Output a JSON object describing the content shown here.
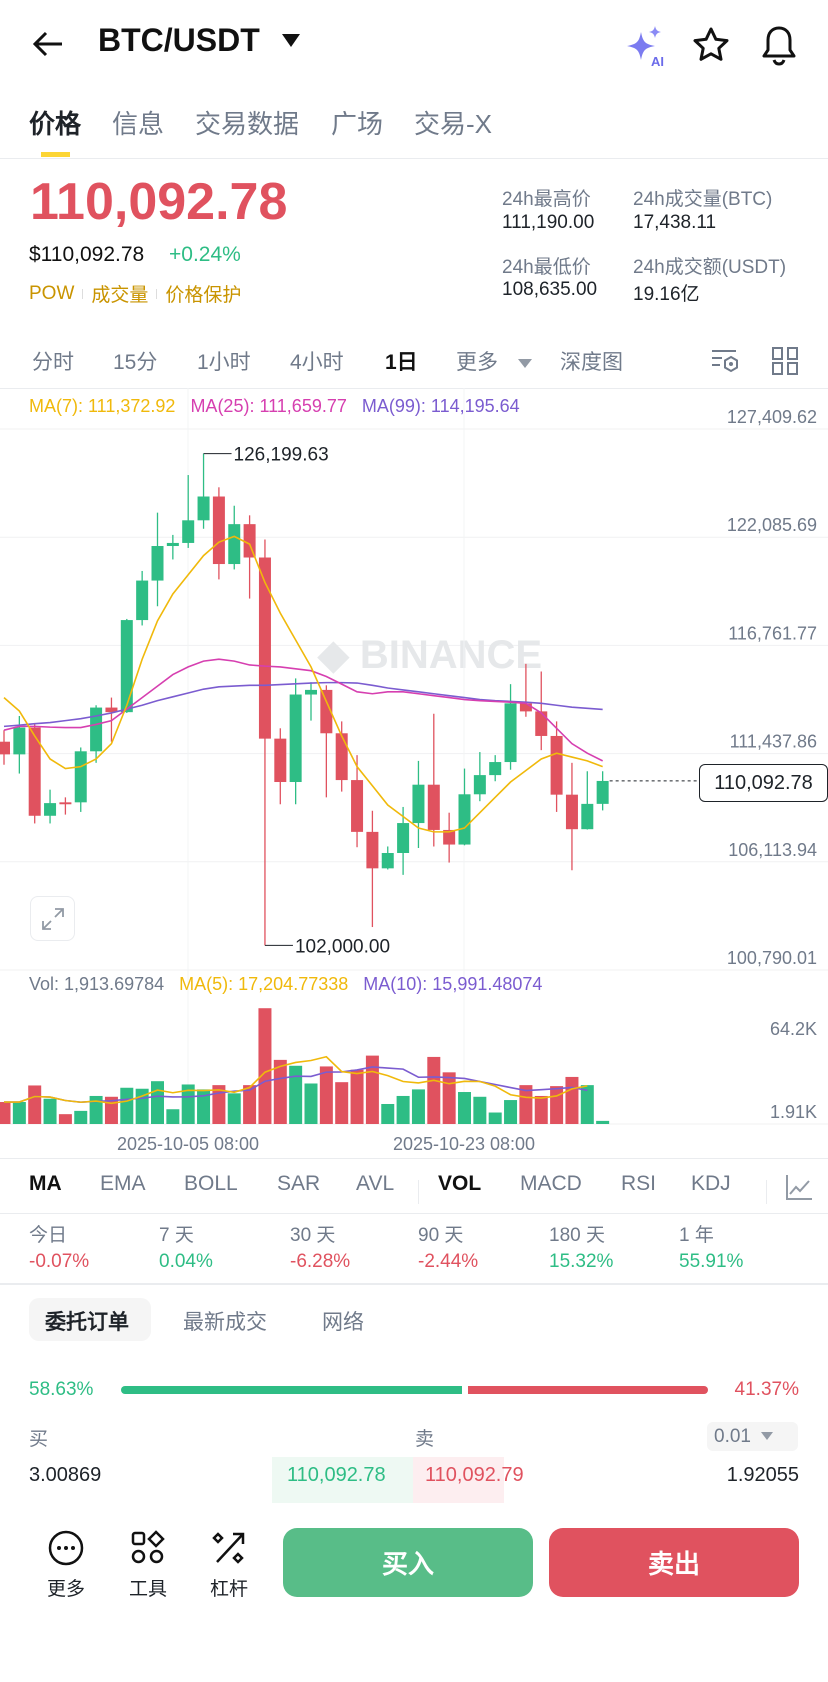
{
  "header": {
    "pair": "BTC/USDT",
    "icons": [
      "back-arrow-icon",
      "ai-sparkle-icon",
      "star-icon",
      "bell-icon"
    ]
  },
  "tabs": [
    "价格",
    "信息",
    "交易数据",
    "广场",
    "交易-X"
  ],
  "price": {
    "last": "110,092.78",
    "usd": "$110,092.78",
    "change": "+0.24%",
    "tags": [
      "POW",
      "成交量",
      "价格保护"
    ]
  },
  "stats": {
    "high_label": "24h最高价",
    "high": "111,190.00",
    "vol_btc_label": "24h成交量(BTC)",
    "vol_btc": "17,438.11",
    "low_label": "24h最低价",
    "low": "108,635.00",
    "vol_usdt_label": "24h成交额(USDT)",
    "vol_usdt": "19.16亿"
  },
  "intervals": [
    "分时",
    "15分",
    "1小时",
    "4小时",
    "1日",
    "更多",
    "深度图"
  ],
  "active_interval": "1日",
  "colors": {
    "up": "#2ebd85",
    "down": "#e0525f",
    "ma7": "#f0b90b",
    "ma25": "#d63fb0",
    "ma99": "#7b5cd0",
    "accent": "#fcd535"
  },
  "chart_data": {
    "type": "candlestick",
    "ma_labels": {
      "ma7": "MA(7): 111,372.92",
      "ma25": "MA(25): 111,659.77",
      "ma99": "MA(99): 114,195.64"
    },
    "y_ticks": [
      "127,409.62",
      "122,085.69",
      "116,761.77",
      "111,437.86",
      "106,113.94",
      "100,790.01"
    ],
    "y_tick_values": [
      127409.62,
      122085.69,
      116761.77,
      111437.86,
      106113.94,
      100790.01
    ],
    "ylim": [
      100790.01,
      127409.62
    ],
    "max_label": "126,199.63",
    "min_label": "102,000.00",
    "current_label": "110,092.78",
    "current": 110092.78,
    "x_ticks": [
      "2025-10-05 08:00",
      "2025-10-23 08:00"
    ],
    "ohlc": [
      [
        112023,
        112589,
        110890,
        111400
      ],
      [
        111400,
        113288,
        110456,
        112721
      ],
      [
        112721,
        112872,
        108001,
        108379
      ],
      [
        108379,
        109663,
        108001,
        109002
      ],
      [
        109040,
        109285,
        108436,
        108945
      ],
      [
        109040,
        111740,
        108568,
        111551
      ],
      [
        111551,
        113816,
        110984,
        113703
      ],
      [
        113703,
        114194,
        112023,
        113477
      ],
      [
        113477,
        118064,
        113439,
        118008
      ],
      [
        118008,
        120424,
        117743,
        119952
      ],
      [
        119952,
        123294,
        118688,
        121652
      ],
      [
        121652,
        122199,
        120991,
        121803
      ],
      [
        121803,
        125144,
        121557,
        122917
      ],
      [
        122917,
        126199.63,
        122501,
        124088
      ],
      [
        124088,
        124541,
        120010,
        120765
      ],
      [
        120765,
        123634,
        120500,
        122728
      ],
      [
        122728,
        123162,
        119066,
        121086
      ],
      [
        121086,
        121973,
        102000,
        112174
      ],
      [
        112174,
        112683,
        108945,
        110040
      ],
      [
        110040,
        115138,
        108945,
        114345
      ],
      [
        114345,
        114949,
        113061,
        114572
      ],
      [
        114572,
        114798,
        109285,
        112438
      ],
      [
        112438,
        113023,
        109568,
        110135
      ],
      [
        110135,
        111362,
        106831,
        107586
      ],
      [
        107586,
        108625,
        102904,
        105792
      ],
      [
        105792,
        106868,
        105736,
        106547
      ],
      [
        106547,
        108813,
        105471,
        108020
      ],
      [
        108020,
        111079,
        106793,
        109908
      ],
      [
        109908,
        113401,
        106868,
        107681
      ],
      [
        107681,
        108530,
        106076,
        106963
      ],
      [
        106963,
        110701,
        106925,
        109436
      ],
      [
        109436,
        111513,
        109096,
        110380
      ],
      [
        110380,
        111362,
        110078,
        111022
      ],
      [
        111022,
        114855,
        110644,
        113911
      ],
      [
        113911,
        115855,
        113250,
        113515
      ],
      [
        113515,
        115478,
        111608,
        112306
      ],
      [
        112306,
        113023,
        108568,
        109417
      ],
      [
        109417,
        110984,
        105698,
        107718
      ],
      [
        107718,
        110569,
        107700,
        108964
      ],
      [
        108964,
        110569,
        108643,
        110092.78
      ]
    ],
    "ma7": [
      114194,
      113533,
      112306,
      111173,
      110701,
      110796,
      111173,
      111928,
      113816,
      116082,
      117970,
      119292,
      120236,
      121180,
      121841,
      122124,
      121746,
      119858,
      118348,
      117026,
      115704,
      114005,
      112306,
      110796,
      109854,
      108908,
      108341,
      107775,
      107586,
      107586,
      107775,
      108530,
      109285,
      110040,
      110607,
      111173,
      111457,
      111268,
      111079,
      110796
    ],
    "ma25": [
      112589,
      112778,
      112778,
      112740,
      112721,
      112721,
      112872,
      113061,
      113628,
      114194,
      114760,
      115327,
      115704,
      115988,
      116082,
      115988,
      115799,
      115742,
      115704,
      115610,
      115516,
      115232,
      114855,
      114477,
      114383,
      114477,
      114477,
      114383,
      114288,
      114194,
      114099,
      114043,
      114005,
      113967,
      113911,
      113439,
      112684,
      111928,
      111457,
      111079
    ],
    "ma99": [
      112778,
      112835,
      112910,
      112967,
      113061,
      113156,
      113288,
      113439,
      113628,
      113816,
      114043,
      114231,
      114420,
      114609,
      114722,
      114760,
      114797,
      114797,
      114835,
      114873,
      114911,
      114930,
      114930,
      114911,
      114797,
      114666,
      114572,
      114477,
      114383,
      114288,
      114194,
      114099,
      114043,
      114005,
      113967,
      113911,
      113816,
      113722,
      113665,
      113609
    ],
    "volume": {
      "labels": {
        "vol": "Vol: 1,913.69784",
        "ma5": "MA(5): 17,204.77338",
        "ma10": "MA(10): 15,991.48074"
      },
      "y_ticks": [
        "64.2K",
        "1.91K"
      ],
      "unit": "K",
      "values": [
        13.4,
        13.4,
        23.5,
        15.4,
        6.0,
        8.0,
        17.1,
        16.6,
        22.1,
        21.5,
        26.1,
        9.0,
        24.1,
        21.1,
        23.7,
        18.7,
        23.7,
        70.6,
        39.1,
        35.5,
        24.7,
        35.1,
        25.5,
        33.1,
        41.7,
        12.2,
        17.1,
        21.1,
        40.9,
        31.5,
        19.5,
        16.6,
        7.0,
        14.6,
        23.7,
        17.1,
        23.1,
        28.7,
        23.7,
        1.9
      ]
    }
  },
  "indicators": [
    "MA",
    "EMA",
    "BOLL",
    "SAR",
    "AVL",
    "VOL",
    "MACD",
    "RSI",
    "KDJ"
  ],
  "performance": [
    {
      "label": "今日",
      "value": "-0.07%"
    },
    {
      "label": "7 天",
      "value": "0.04%"
    },
    {
      "label": "30 天",
      "value": "-6.28%"
    },
    {
      "label": "90 天",
      "value": "-2.44%"
    },
    {
      "label": "180 天",
      "value": "15.32%"
    },
    {
      "label": "1 年",
      "value": "55.91%"
    }
  ],
  "order_tabs": [
    "委托订单",
    "最新成交",
    "网络"
  ],
  "orderbook": {
    "buy_pct": "58.63%",
    "sell_pct": "41.37%",
    "buy_ratio": 0.5863,
    "buy_label": "买",
    "sell_label": "卖",
    "precision": "0.01",
    "row": {
      "bid_qty": "3.00869",
      "bid_price": "110,092.78",
      "ask_price": "110,092.79",
      "ask_qty": "1.92055"
    }
  },
  "bottom": {
    "more": "更多",
    "tools": "工具",
    "leverage": "杠杆",
    "buy": "买入",
    "sell": "卖出"
  }
}
